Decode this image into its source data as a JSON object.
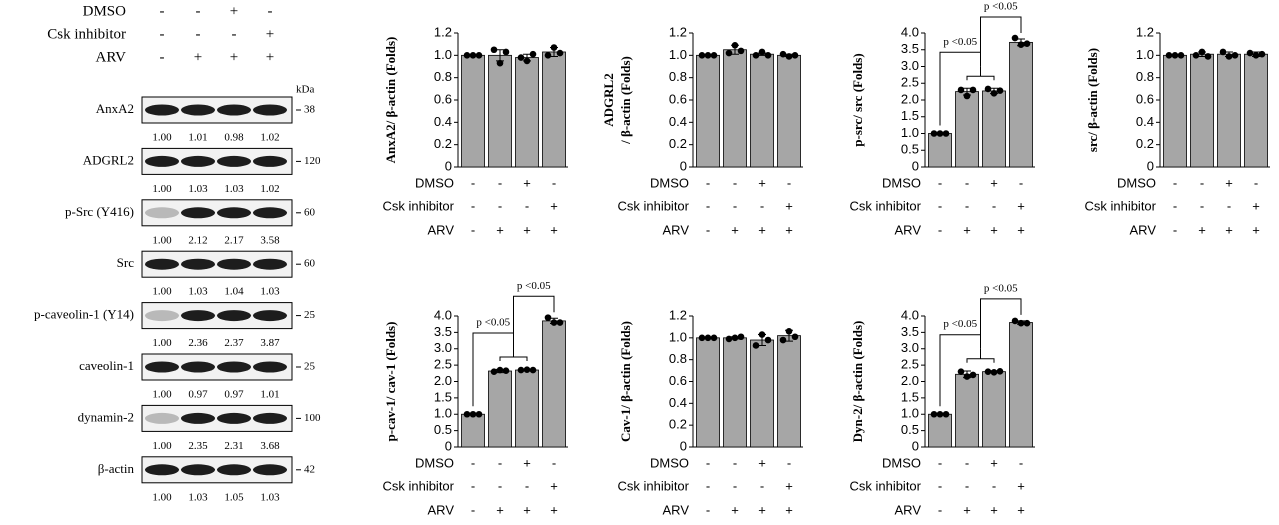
{
  "blot": {
    "treatments": [
      {
        "name": "DMSO",
        "signs": [
          "-",
          "-",
          "+",
          "-"
        ]
      },
      {
        "name": "Csk inhibitor",
        "signs": [
          "-",
          "-",
          "-",
          "+"
        ]
      },
      {
        "name": "ARV",
        "signs": [
          "-",
          "+",
          "+",
          "+"
        ]
      }
    ],
    "unit": "kDa",
    "rows": [
      {
        "label": "AnxA2",
        "marker": "38",
        "values": [
          "1.00",
          "1.01",
          "0.98",
          "1.02"
        ]
      },
      {
        "label": "ADGRL2",
        "marker": "120",
        "values": [
          "1.00",
          "1.03",
          "1.03",
          "1.02"
        ]
      },
      {
        "label": "p-Src (Y416)",
        "marker": "60",
        "values": [
          "1.00",
          "2.12",
          "2.17",
          "3.58"
        ]
      },
      {
        "label": "Src",
        "marker": "60",
        "values": [
          "1.00",
          "1.03",
          "1.04",
          "1.03"
        ]
      },
      {
        "label": "p-caveolin-1 (Y14)",
        "marker": "25",
        "values": [
          "1.00",
          "2.36",
          "2.37",
          "3.87"
        ]
      },
      {
        "label": "caveolin-1",
        "marker": "25",
        "values": [
          "1.00",
          "0.97",
          "0.97",
          "1.01"
        ]
      },
      {
        "label": "dynamin-2",
        "marker": "100",
        "values": [
          "1.00",
          "2.35",
          "2.31",
          "3.68"
        ]
      },
      {
        "label": "β-actin",
        "marker": "42",
        "values": [
          "1.00",
          "1.03",
          "1.05",
          "1.03"
        ]
      }
    ]
  },
  "chart_data": [
    {
      "type": "bar",
      "ylabel": [
        "AnxA2/ β-actin (Folds)"
      ],
      "color": "#a6a6a6",
      "values": [
        1.0,
        1.0,
        0.98,
        1.03
      ],
      "errors": [
        0,
        0.05,
        0.03,
        0.04
      ],
      "points": [
        [
          1,
          1,
          1
        ],
        [
          1.05,
          0.93,
          1.03
        ],
        [
          0.98,
          0.95,
          1.01
        ],
        [
          1.0,
          1.07,
          1.02
        ]
      ],
      "ylim": [
        0,
        1.2
      ],
      "yticks": [
        0,
        0.2,
        0.4,
        0.6,
        0.8,
        {
          "value": 1,
          "label": "1.0"
        },
        1.2
      ],
      "treatments": [
        {
          "name": "DMSO",
          "signs": [
            "-",
            "-",
            "+",
            "-"
          ]
        },
        {
          "name": "Csk inhibitor",
          "signs": [
            "-",
            "-",
            "-",
            "+"
          ]
        },
        {
          "name": "ARV",
          "signs": [
            "-",
            "+",
            "+",
            "+"
          ]
        }
      ],
      "comparisons": []
    },
    {
      "type": "bar",
      "ylabel": [
        "ADGRL2",
        "/ β-actin (Folds)"
      ],
      "color": "#a6a6a6",
      "values": [
        1.0,
        1.05,
        1.01,
        1.0
      ],
      "errors": [
        0,
        0.04,
        0.01,
        0.01
      ],
      "points": [
        [
          1,
          1,
          1
        ],
        [
          1.02,
          1.09,
          1.04
        ],
        [
          1.0,
          1.03,
          1.0
        ],
        [
          1.01,
          0.99,
          1.0
        ]
      ],
      "ylim": [
        0,
        1.2
      ],
      "yticks": [
        0,
        0.2,
        0.4,
        0.6,
        0.8,
        {
          "value": 1,
          "label": "1.0"
        },
        1.2
      ],
      "treatments": [
        {
          "name": "DMSO",
          "signs": [
            "-",
            "-",
            "+",
            "-"
          ]
        },
        {
          "name": "Csk inhibitor",
          "signs": [
            "-",
            "-",
            "-",
            "+"
          ]
        },
        {
          "name": "ARV",
          "signs": [
            "-",
            "+",
            "+",
            "+"
          ]
        }
      ],
      "comparisons": []
    },
    {
      "type": "bar",
      "ylabel": [
        "p-src/ src (Folds)"
      ],
      "color": "#a6a6a6",
      "values": [
        1.0,
        2.25,
        2.27,
        3.72
      ],
      "errors": [
        0,
        0.1,
        0.08,
        0.1
      ],
      "points": [
        [
          1,
          1,
          1
        ],
        [
          2.3,
          2.12,
          2.3
        ],
        [
          2.33,
          2.2,
          2.28
        ],
        [
          3.85,
          3.65,
          3.68
        ]
      ],
      "ylim": [
        0,
        4
      ],
      "yticks": [
        0,
        0.5,
        {
          "value": 1,
          "label": "1.0"
        },
        1.5,
        {
          "value": 2,
          "label": "2.0"
        },
        2.5,
        {
          "value": 3,
          "label": "3.0"
        },
        3.5,
        {
          "value": 4,
          "label": "4.0"
        }
      ],
      "treatments": [
        {
          "name": "DMSO",
          "signs": [
            "-",
            "-",
            "+",
            "-"
          ]
        },
        {
          "name": "Csk inhibitor",
          "signs": [
            "-",
            "-",
            "-",
            "+"
          ]
        },
        {
          "name": "ARV",
          "signs": [
            "-",
            "+",
            "+",
            "+"
          ]
        }
      ],
      "comparisons": [
        "p <0.05",
        "p <0.05"
      ]
    },
    {
      "type": "bar",
      "ylabel": [
        "src/ β-actin (Folds)"
      ],
      "color": "#a6a6a6",
      "values": [
        1.0,
        1.01,
        1.01,
        1.01
      ],
      "errors": [
        0,
        0.02,
        0.02,
        0.02
      ],
      "points": [
        [
          1,
          1,
          1
        ],
        [
          1.0,
          1.03,
          0.99
        ],
        [
          1.03,
          0.99,
          1.0
        ],
        [
          1.02,
          1.0,
          1.01
        ]
      ],
      "ylim": [
        0,
        1.2
      ],
      "yticks": [
        0,
        0.2,
        0.4,
        0.6,
        0.8,
        {
          "value": 1,
          "label": "1.0"
        },
        1.2
      ],
      "treatments": [
        {
          "name": "DMSO",
          "signs": [
            "-",
            "-",
            "+",
            "-"
          ]
        },
        {
          "name": "Csk inhibitor",
          "signs": [
            "-",
            "-",
            "-",
            "+"
          ]
        },
        {
          "name": "ARV",
          "signs": [
            "-",
            "+",
            "+",
            "+"
          ]
        }
      ],
      "comparisons": []
    },
    {
      "type": "bar",
      "ylabel": [
        "p-cav-1/ cav-1 (Folds)"
      ],
      "color": "#a6a6a6",
      "values": [
        1.0,
        2.32,
        2.35,
        3.85
      ],
      "errors": [
        0,
        0.05,
        0.03,
        0.08
      ],
      "points": [
        [
          1,
          1,
          1
        ],
        [
          2.3,
          2.35,
          2.33
        ],
        [
          2.35,
          2.36,
          2.35
        ],
        [
          3.95,
          3.8,
          3.8
        ]
      ],
      "ylim": [
        0,
        4
      ],
      "yticks": [
        0,
        0.5,
        {
          "value": 1,
          "label": "1.0"
        },
        1.5,
        {
          "value": 2,
          "label": "2.0"
        },
        2.5,
        {
          "value": 3,
          "label": "3.0"
        },
        3.5,
        {
          "value": 4,
          "label": "4.0"
        }
      ],
      "treatments": [
        {
          "name": "DMSO",
          "signs": [
            "-",
            "-",
            "+",
            "-"
          ]
        },
        {
          "name": "Csk inhibitor",
          "signs": [
            "-",
            "-",
            "-",
            "+"
          ]
        },
        {
          "name": "ARV",
          "signs": [
            "-",
            "+",
            "+",
            "+"
          ]
        }
      ],
      "comparisons": [
        "p <0.05",
        "p <0.05"
      ]
    },
    {
      "type": "bar",
      "ylabel": [
        "Cav-1/ β-actin (Folds)"
      ],
      "color": "#a6a6a6",
      "values": [
        1.0,
        1.0,
        0.98,
        1.02
      ],
      "errors": [
        0,
        0.01,
        0.05,
        0.05
      ],
      "points": [
        [
          1,
          1,
          1
        ],
        [
          0.99,
          1.0,
          1.01
        ],
        [
          0.93,
          1.03,
          0.98
        ],
        [
          0.98,
          1.06,
          1.01
        ]
      ],
      "ylim": [
        0,
        1.2
      ],
      "yticks": [
        0,
        0.2,
        0.4,
        0.6,
        0.8,
        {
          "value": 1,
          "label": "1.0"
        },
        1.2
      ],
      "treatments": [
        {
          "name": "DMSO",
          "signs": [
            "-",
            "-",
            "+",
            "-"
          ]
        },
        {
          "name": "Csk inhibitor",
          "signs": [
            "-",
            "-",
            "-",
            "+"
          ]
        },
        {
          "name": "ARV",
          "signs": [
            "-",
            "+",
            "+",
            "+"
          ]
        }
      ],
      "comparisons": []
    },
    {
      "type": "bar",
      "ylabel": [
        "Dyn-2/ β-actin (Folds)"
      ],
      "color": "#a6a6a6",
      "values": [
        1.0,
        2.22,
        2.3,
        3.8
      ],
      "errors": [
        0,
        0.1,
        0.03,
        0.05
      ],
      "points": [
        [
          1,
          1,
          1
        ],
        [
          2.3,
          2.15,
          2.2
        ],
        [
          2.3,
          2.28,
          2.31
        ],
        [
          3.85,
          3.78,
          3.78
        ]
      ],
      "ylim": [
        0,
        4
      ],
      "yticks": [
        0,
        0.5,
        {
          "value": 1,
          "label": "1.0"
        },
        1.5,
        {
          "value": 2,
          "label": "2.0"
        },
        2.5,
        {
          "value": 3,
          "label": "3.0"
        },
        3.5,
        {
          "value": 4,
          "label": "4.0"
        }
      ],
      "treatments": [
        {
          "name": "DMSO",
          "signs": [
            "-",
            "-",
            "+",
            "-"
          ]
        },
        {
          "name": "Csk inhibitor",
          "signs": [
            "-",
            "-",
            "-",
            "+"
          ]
        },
        {
          "name": "ARV",
          "signs": [
            "-",
            "+",
            "+",
            "+"
          ]
        }
      ],
      "comparisons": [
        "p <0.05",
        "p <0.05"
      ]
    }
  ]
}
